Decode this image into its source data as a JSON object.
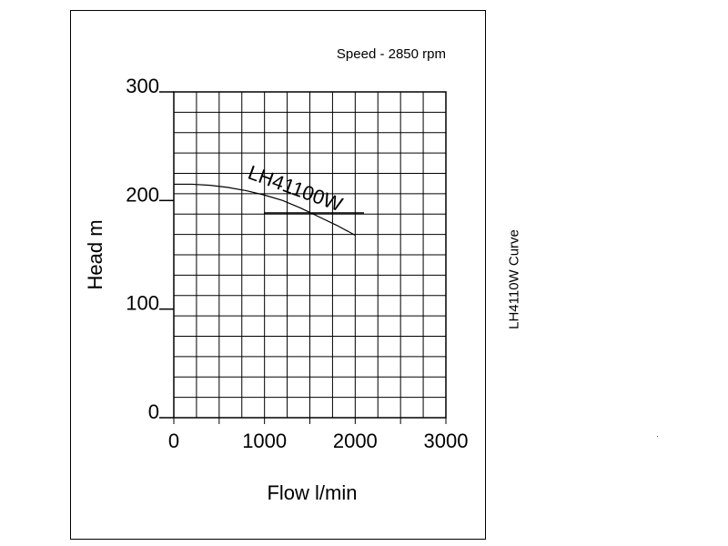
{
  "side_label": "LH4110W Curve",
  "chart_data": {
    "type": "line",
    "title": "",
    "subtitle": "Speed - 2850 rpm",
    "xlabel": "Flow l/min",
    "ylabel": "Head m",
    "xlim": [
      0,
      3000
    ],
    "ylim": [
      0,
      300
    ],
    "xticks": [
      0,
      1000,
      2000,
      3000
    ],
    "yticks": [
      0,
      100,
      200,
      300
    ],
    "grid": true,
    "legend": "none",
    "series": [
      {
        "name": "LH41100W",
        "color": "#000000",
        "x": [
          0,
          200,
          400,
          600,
          800,
          1000,
          1200,
          1400,
          1600,
          1800,
          2000
        ],
        "y": [
          215,
          215,
          214,
          212,
          209,
          205,
          200,
          193,
          185,
          177,
          168
        ]
      }
    ]
  }
}
